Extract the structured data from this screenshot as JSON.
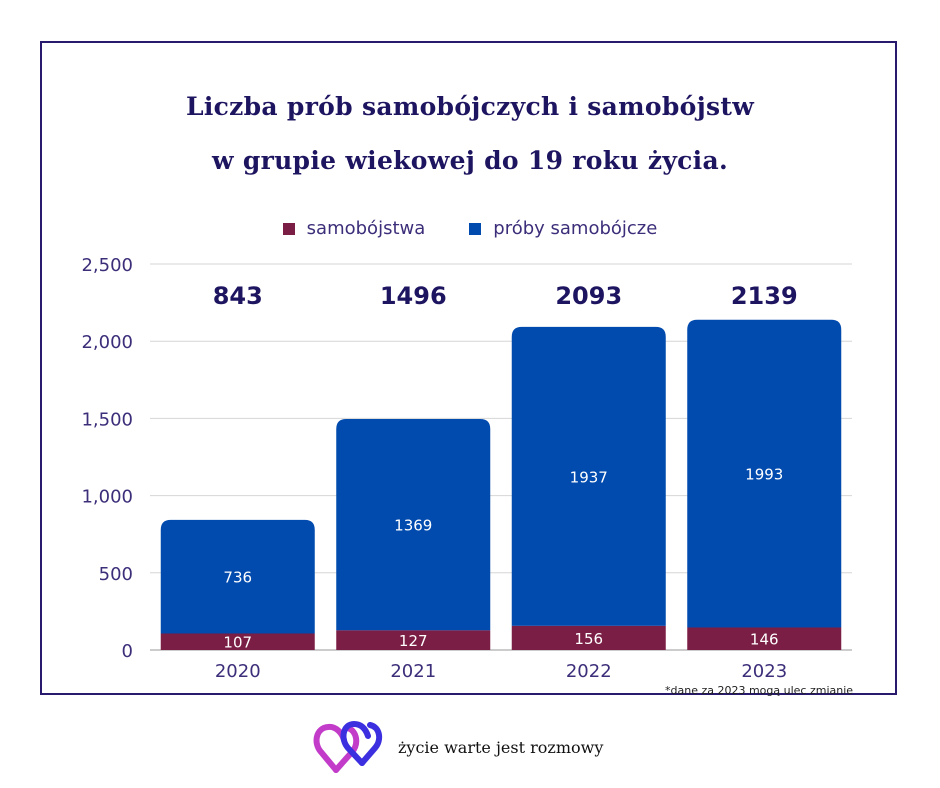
{
  "chart_data": {
    "type": "bar",
    "stacked": true,
    "title_line1": "Liczba prób samobójczych i samobójstw",
    "title_line2": "w grupie wiekowej do 19 roku życia.",
    "categories": [
      "2020",
      "2021",
      "2022",
      "2023"
    ],
    "series": [
      {
        "name": "samobójstwa",
        "color": "#7b1e45",
        "values": [
          107,
          127,
          156,
          146
        ]
      },
      {
        "name": "próby samobójcze",
        "color": "#014aae",
        "values": [
          736,
          1369,
          1937,
          1993
        ]
      }
    ],
    "totals": [
      "843",
      "1496",
      "2093",
      "2139"
    ],
    "y_ticks": [
      0,
      500,
      1000,
      1500,
      2000,
      2500
    ],
    "y_tick_labels": [
      "0",
      "500",
      "1,000",
      "1,500",
      "2,000",
      "2,500"
    ],
    "ylim": [
      0,
      2500
    ],
    "grid": true,
    "legend_position": "top-center",
    "footnote": "*dane za 2023 mogą ulec zmianie"
  },
  "brand": {
    "logo_text": "życie warte jest rozmowy",
    "logo_icon": "double-heart-ribbon-icon",
    "colors": [
      "#c23cc9",
      "#3b2fe0"
    ]
  }
}
